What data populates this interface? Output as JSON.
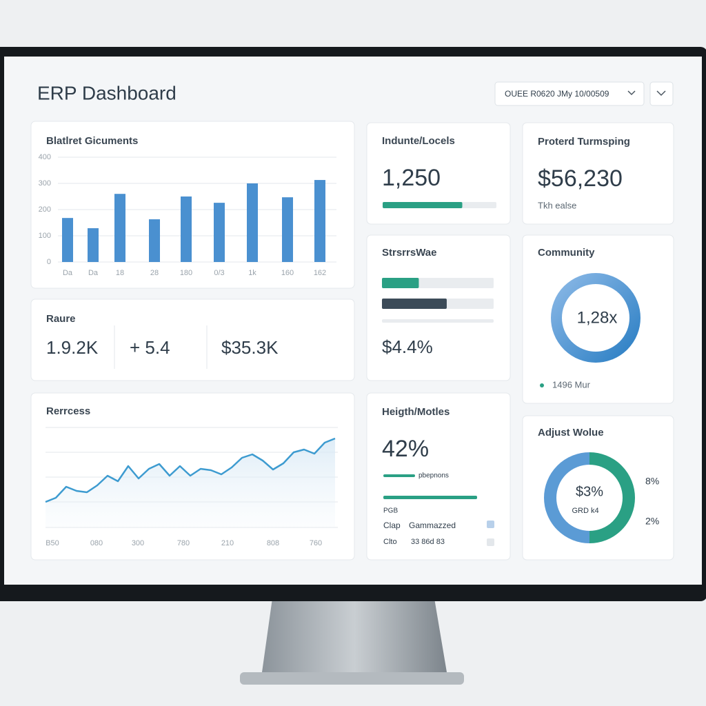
{
  "header": {
    "title": "ERP Dashboard",
    "dropdown": "OUEE R0620 JMy 10/00509"
  },
  "bar_panel": {
    "title": "Blatlret Gicuments",
    "type": "bar",
    "color": "#4a90d0",
    "categories": [
      "Da",
      "Da",
      "18",
      "28",
      "180",
      "0/3",
      "1k",
      "160",
      "162"
    ],
    "values": [
      168,
      129,
      260,
      163,
      250,
      226,
      300,
      247,
      313
    ],
    "ylim": [
      0,
      400
    ],
    "yticks": [
      0,
      100,
      200,
      300,
      400
    ]
  },
  "summary": {
    "title": "Raure",
    "items": [
      "1.9.2K",
      "+ 5.4",
      "$35.3K"
    ]
  },
  "line_panel": {
    "title": "Rerrcess",
    "type": "line",
    "color": "#3d9bd0",
    "categories": [
      "B50",
      "080",
      "300",
      "780",
      "210",
      "808",
      "760"
    ],
    "values": [
      37,
      43,
      59,
      53,
      51,
      61,
      75,
      67,
      89,
      71,
      85,
      92,
      75,
      89,
      75,
      85,
      83,
      77,
      87,
      101,
      106,
      97,
      84,
      93,
      109,
      113,
      107,
      123,
      129
    ],
    "ylim": [
      0,
      145
    ]
  },
  "indunte": {
    "title": "Indunte/Locels",
    "value": "1,250",
    "progress": 70
  },
  "proterd": {
    "title": "Proterd Turmsping",
    "value": "$56,230",
    "note": "Tkh ealse"
  },
  "strs": {
    "title": "StrsrrsWae",
    "bars": [
      33,
      58
    ],
    "value": "$4.4%"
  },
  "community": {
    "title": "Community",
    "center": "1,28x",
    "legend": "1496 Mur"
  },
  "heigth": {
    "title": "Heigth/Motles",
    "value": "42%",
    "bar_label": "pbepnons",
    "rows": [
      [
        "PGB",
        ""
      ],
      [
        "Clap",
        "Gammazzed"
      ],
      [
        "Clto",
        "33 86d 83"
      ]
    ]
  },
  "adjust": {
    "title": "Adjust Wolue",
    "center": "$3%",
    "center_sub": "GRD k4",
    "labels": [
      "8%",
      "2%"
    ],
    "values": [
      50,
      50
    ],
    "colors": [
      "#5b9bd5",
      "#2aa084"
    ]
  }
}
